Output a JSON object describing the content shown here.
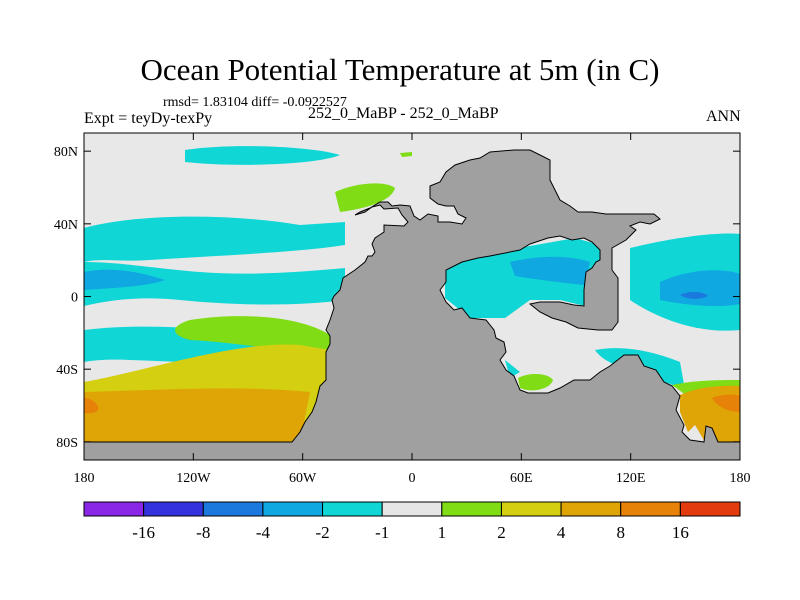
{
  "chart_data": {
    "type": "map",
    "title": "Ocean Potential Temperature at 5m (in C)",
    "stats_text": "rmsd= 1.83104 diff= -0.0922527",
    "left_label": "Expt = teyDy-texPy",
    "center_label": "252_0_MaBP - 252_0_MaBP",
    "right_label": "ANN",
    "x_ticks": [
      "180",
      "120W",
      "60W",
      "0",
      "60E",
      "120E",
      "180"
    ],
    "y_ticks": [
      "80N",
      "40N",
      "0",
      "40S",
      "80S"
    ],
    "colorbar": {
      "colors": [
        "#8a26e6",
        "#3333dd",
        "#1b78dc",
        "#0fa8e0",
        "#11d6d6",
        "#e6e6e6",
        "#7fdc15",
        "#d4cf10",
        "#dfa405",
        "#e68208",
        "#e23c0e"
      ],
      "labels": [
        "-16",
        "-8",
        "-4",
        "-2",
        "-1",
        "1",
        "2",
        "4",
        "8",
        "16"
      ]
    },
    "colors": {
      "ocean_zero": "#e8e8e8",
      "land": "#a0a0a0",
      "cyan": "#11d6d6",
      "sky": "#0fa8e0",
      "green": "#7fdc15",
      "yellow": "#d4cf10",
      "orange": "#dfa405",
      "red_orange": "#e68208"
    }
  }
}
